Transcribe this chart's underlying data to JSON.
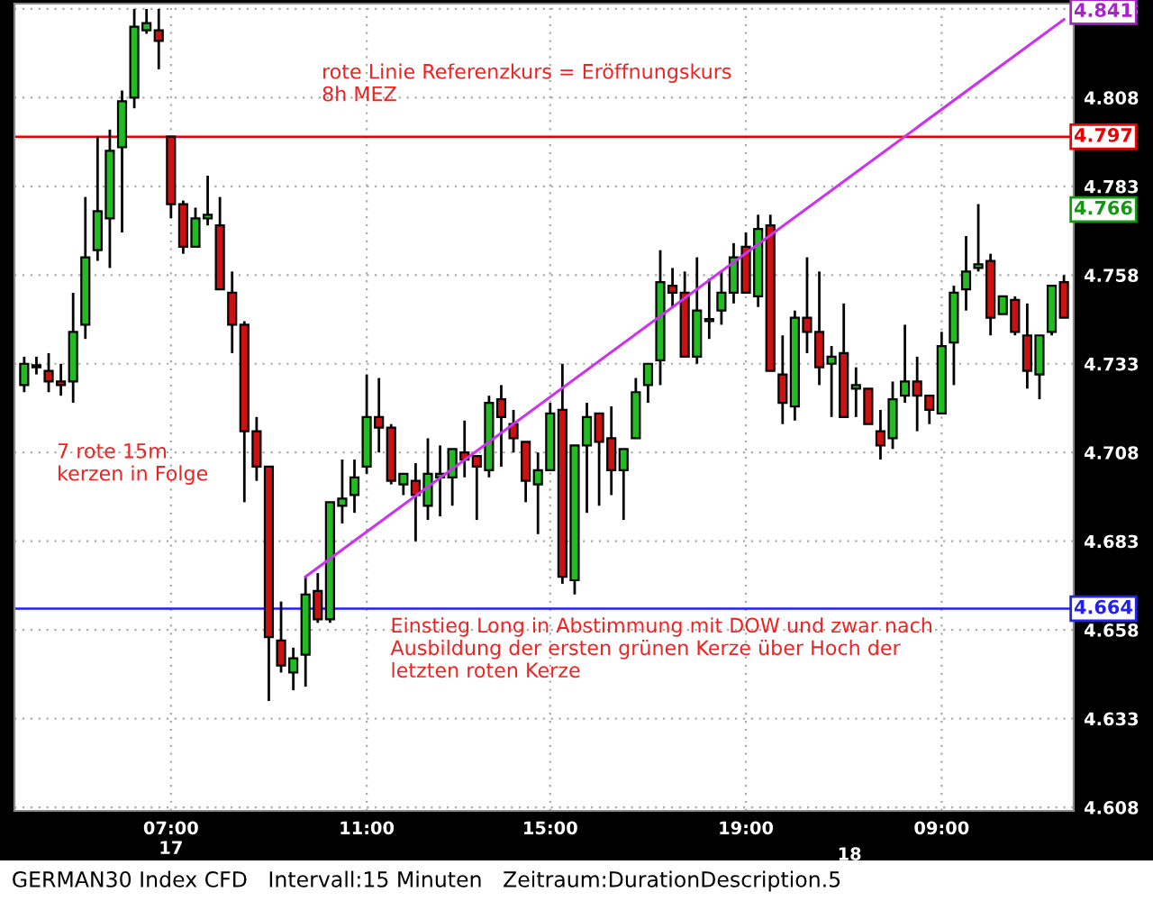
{
  "chart_data": {
    "type": "candlestick",
    "categories": [
      null,
      null,
      null,
      null,
      null,
      null,
      null,
      null,
      null,
      null,
      null,
      null,
      "07:00\n17",
      null,
      null,
      null,
      null,
      null,
      null,
      null,
      null,
      null,
      null,
      null,
      null,
      null,
      null,
      null,
      "11:00",
      null,
      null,
      null,
      null,
      null,
      null,
      null,
      null,
      null,
      null,
      null,
      null,
      null,
      null,
      "15:00",
      null,
      null,
      null,
      null,
      null,
      null,
      null,
      null,
      null,
      null,
      null,
      null,
      null,
      null,
      null,
      "19:00",
      null,
      null,
      null,
      null,
      null,
      null,
      null,
      null,
      null,
      null,
      null,
      null,
      null,
      null,
      null,
      "09:00",
      null,
      null,
      null,
      null,
      null,
      null,
      null,
      null,
      null,
      null
    ],
    "ohlc": [
      [
        4.727,
        4.735,
        4.725,
        4.733
      ],
      [
        4.732,
        4.735,
        4.73,
        4.732
      ],
      [
        4.731,
        4.736,
        4.725,
        4.728
      ],
      [
        4.728,
        4.733,
        4.724,
        4.727
      ],
      [
        4.728,
        4.753,
        4.722,
        4.742
      ],
      [
        4.744,
        4.78,
        4.74,
        4.763
      ],
      [
        4.765,
        4.797,
        4.762,
        4.776
      ],
      [
        4.774,
        4.799,
        4.76,
        4.793
      ],
      [
        4.794,
        4.81,
        4.77,
        4.807
      ],
      [
        4.808,
        4.833,
        4.805,
        4.828
      ],
      [
        4.827,
        4.833,
        4.826,
        4.829
      ],
      [
        4.827,
        4.833,
        4.816,
        4.824
      ],
      [
        4.797,
        4.797,
        4.774,
        4.778
      ],
      [
        4.778,
        4.779,
        4.764,
        4.766
      ],
      [
        4.766,
        4.777,
        4.766,
        4.774
      ],
      [
        4.774,
        4.786,
        4.772,
        4.775
      ],
      [
        4.772,
        4.78,
        4.754,
        4.754
      ],
      [
        4.753,
        4.759,
        4.736,
        4.744
      ],
      [
        4.744,
        4.745,
        4.694,
        4.714
      ],
      [
        4.714,
        4.718,
        4.7,
        4.704
      ],
      [
        4.704,
        4.704,
        4.638,
        4.656
      ],
      [
        4.655,
        4.666,
        4.646,
        4.648
      ],
      [
        4.646,
        4.653,
        4.641,
        4.65
      ],
      [
        4.651,
        4.673,
        4.642,
        4.668
      ],
      [
        4.669,
        4.674,
        4.66,
        4.661
      ],
      [
        4.661,
        4.694,
        4.66,
        4.694
      ],
      [
        4.693,
        4.706,
        4.688,
        4.695
      ],
      [
        4.696,
        4.706,
        4.691,
        4.701
      ],
      [
        4.704,
        4.73,
        4.702,
        4.718
      ],
      [
        4.718,
        4.729,
        4.708,
        4.715
      ],
      [
        4.715,
        4.716,
        4.699,
        4.7
      ],
      [
        4.699,
        4.702,
        4.696,
        4.702
      ],
      [
        4.7,
        4.705,
        4.683,
        4.696
      ],
      [
        4.693,
        4.712,
        4.689,
        4.702
      ],
      [
        4.701,
        4.71,
        4.69,
        4.702
      ],
      [
        4.701,
        4.709,
        4.693,
        4.709
      ],
      [
        4.708,
        4.717,
        4.701,
        4.706
      ],
      [
        4.707,
        4.707,
        4.689,
        4.704
      ],
      [
        4.703,
        4.724,
        4.701,
        4.722
      ],
      [
        4.723,
        4.727,
        4.704,
        4.718
      ],
      [
        4.716,
        4.72,
        4.708,
        4.712
      ],
      [
        4.711,
        4.711,
        4.694,
        4.7
      ],
      [
        4.699,
        4.708,
        4.685,
        4.703
      ],
      [
        4.703,
        4.722,
        4.703,
        4.719
      ],
      [
        4.72,
        4.733,
        4.671,
        4.673
      ],
      [
        4.672,
        4.71,
        4.668,
        4.71
      ],
      [
        4.71,
        4.722,
        4.691,
        4.718
      ],
      [
        4.719,
        4.719,
        4.693,
        4.711
      ],
      [
        4.712,
        4.721,
        4.696,
        4.703
      ],
      [
        4.703,
        4.709,
        4.689,
        4.709
      ],
      [
        4.712,
        4.729,
        4.712,
        4.725
      ],
      [
        4.727,
        4.733,
        4.722,
        4.733
      ],
      [
        4.734,
        4.765,
        4.727,
        4.756
      ],
      [
        4.755,
        4.76,
        4.749,
        4.753
      ],
      [
        4.753,
        4.759,
        4.735,
        4.735
      ],
      [
        4.735,
        4.763,
        4.733,
        4.748
      ],
      [
        4.745,
        4.757,
        4.74,
        4.745
      ],
      [
        4.748,
        4.759,
        4.744,
        4.753
      ],
      [
        4.753,
        4.767,
        4.75,
        4.763
      ],
      [
        4.766,
        4.77,
        4.753,
        4.753
      ],
      [
        4.752,
        4.775,
        4.749,
        4.771
      ],
      [
        4.772,
        4.775,
        4.731,
        4.731
      ],
      [
        4.73,
        4.741,
        4.716,
        4.722
      ],
      [
        4.721,
        4.748,
        4.717,
        4.746
      ],
      [
        4.746,
        4.763,
        4.736,
        4.742
      ],
      [
        4.742,
        4.759,
        4.727,
        4.732
      ],
      [
        4.733,
        4.738,
        4.718,
        4.735
      ],
      [
        4.736,
        4.75,
        4.718,
        4.718
      ],
      [
        4.726,
        4.732,
        4.718,
        4.727
      ],
      [
        4.726,
        4.726,
        4.716,
        4.716
      ],
      [
        4.714,
        4.72,
        4.706,
        4.71
      ],
      [
        4.712,
        4.728,
        4.709,
        4.723
      ],
      [
        4.724,
        4.744,
        4.722,
        4.728
      ],
      [
        4.728,
        4.735,
        4.714,
        4.724
      ],
      [
        4.724,
        4.724,
        4.716,
        4.72
      ],
      [
        4.719,
        4.742,
        4.719,
        4.738
      ],
      [
        4.739,
        4.755,
        4.727,
        4.753
      ],
      [
        4.754,
        4.769,
        4.748,
        4.759
      ],
      [
        4.76,
        4.778,
        4.759,
        4.761
      ],
      [
        4.762,
        4.764,
        4.741,
        4.746
      ],
      [
        4.747,
        4.752,
        4.747,
        4.752
      ],
      [
        4.751,
        4.752,
        4.741,
        4.742
      ],
      [
        4.741,
        4.75,
        4.726,
        4.731
      ],
      [
        4.73,
        4.741,
        4.723,
        4.741
      ],
      [
        4.742,
        4.755,
        4.741,
        4.755
      ],
      [
        4.756,
        4.758,
        4.746,
        4.746
      ]
    ],
    "series": [
      {
        "type": "line",
        "color": "#cc33ee",
        "values": [
          null,
          null,
          null,
          null,
          null,
          null,
          null,
          null,
          null,
          null,
          null,
          null,
          null,
          null,
          null,
          null,
          null,
          null,
          null,
          null,
          null,
          null,
          null,
          4.673,
          null,
          null,
          null,
          null,
          null,
          null,
          null,
          null,
          null,
          null,
          null,
          null,
          null,
          null,
          null,
          null,
          null,
          null,
          null,
          null,
          null,
          null,
          null,
          null,
          null,
          null,
          null,
          null,
          null,
          null,
          null,
          null,
          null,
          null,
          null,
          null,
          null,
          null,
          null,
          null,
          null,
          null,
          null,
          null,
          null,
          null,
          null,
          null,
          null,
          null,
          null,
          null,
          null,
          null,
          null,
          null,
          null,
          null,
          null,
          null,
          null,
          4.83
        ]
      }
    ],
    "ylim": [
      4.607,
      4.8345
    ],
    "yticks": [
      4.608,
      4.633,
      4.658,
      4.683,
      4.708,
      4.733,
      4.758,
      4.783,
      4.808,
      4.833
    ],
    "ref_lines": [
      {
        "axis": "y",
        "value": 4.797,
        "label": "4.797",
        "color": "#ee0000"
      },
      {
        "axis": "y",
        "value": 4.664,
        "label": "4.664",
        "color": "#2222ee"
      }
    ],
    "annotations": [
      "rote Linie Referenzkurs = Eröffnungskurs\n8h MEZ",
      "7 rote 15m\nkerzen in Folge",
      "Einstieg Long in Abstimmung mit DOW und zwar nach\nAusbildung der ersten grünen Kerze über Hoch der\nletzten roten Kerze",
      "4.841",
      "4.766",
      "18",
      "GERMAN30 Index CFD   Intervall:15 Minuten   Zeitraum:DurationDescription.5"
    ],
    "grid": true
  }
}
